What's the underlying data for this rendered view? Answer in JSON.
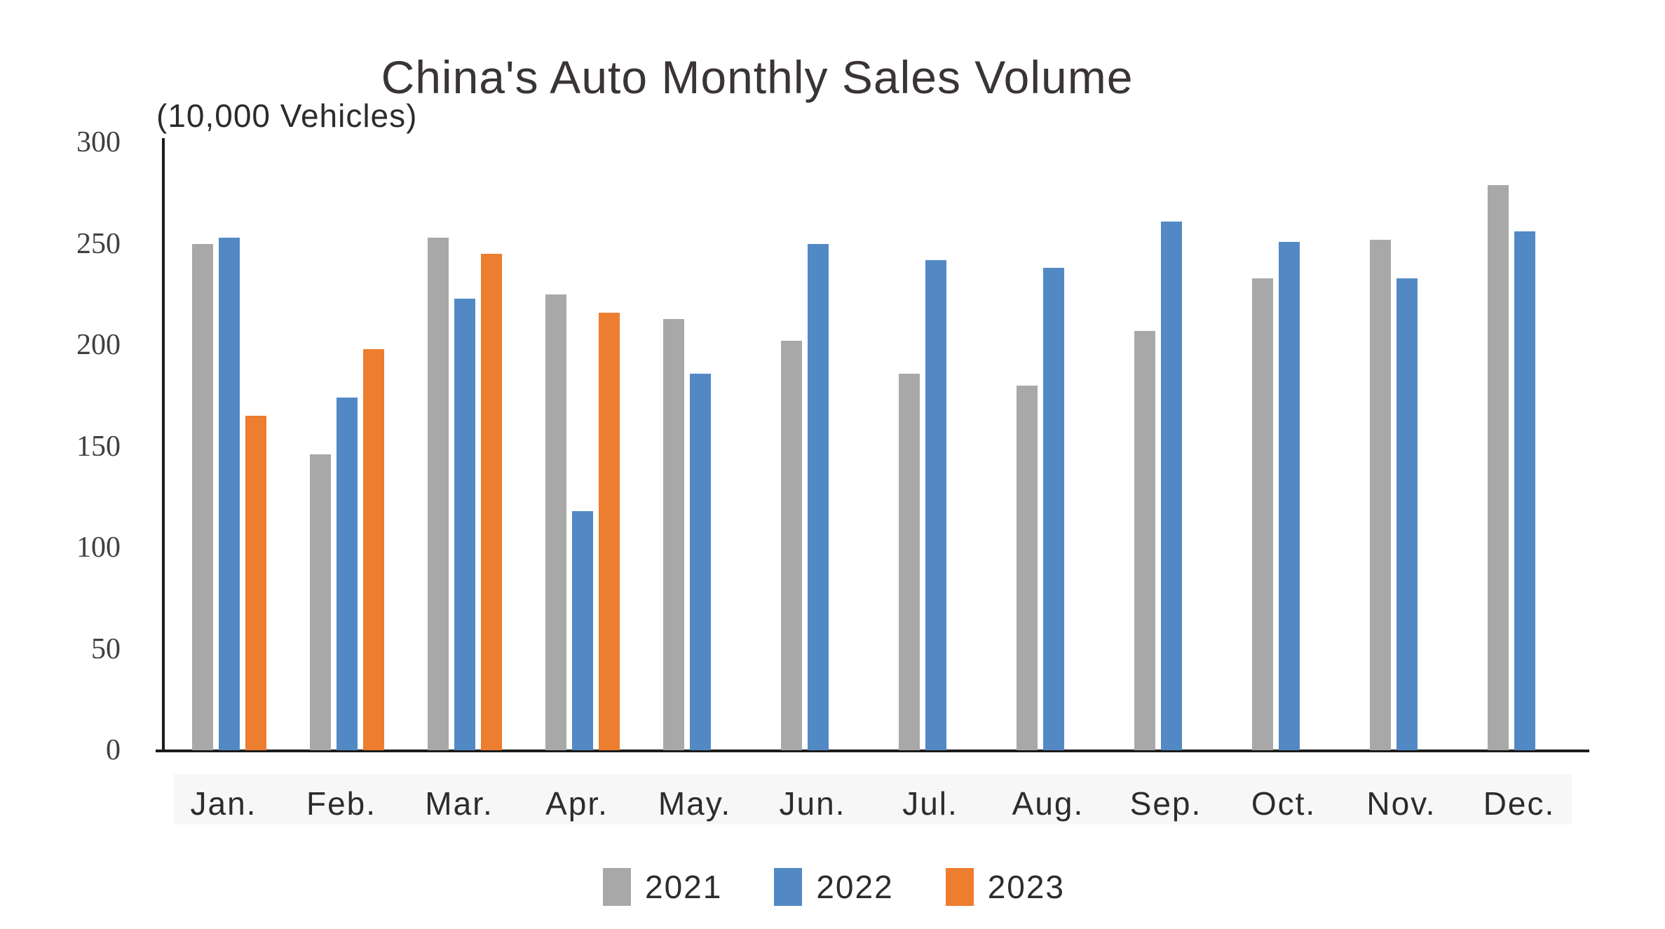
{
  "chart_data": {
    "type": "bar",
    "title": "China's Auto Monthly Sales Volume",
    "unit_label": "(10,000 Vehicles)",
    "categories": [
      "Jan.",
      "Feb.",
      "Mar.",
      "Apr.",
      "May.",
      "Jun.",
      "Jul.",
      "Aug.",
      "Sep.",
      "Oct.",
      "Nov.",
      "Dec."
    ],
    "series": [
      {
        "name": "2021",
        "color": "#a8a8a8",
        "values": [
          250,
          146,
          253,
          225,
          213,
          202,
          186,
          180,
          207,
          233,
          252,
          279
        ]
      },
      {
        "name": "2022",
        "color": "#5289c5",
        "values": [
          253,
          174,
          223,
          118,
          186,
          250,
          242,
          238,
          261,
          251,
          233,
          256
        ]
      },
      {
        "name": "2023",
        "color": "#ed7d2f",
        "values": [
          165,
          198,
          245,
          216,
          null,
          null,
          null,
          null,
          null,
          null,
          null,
          null
        ]
      }
    ],
    "xlabel": "",
    "ylabel": "",
    "ylim": [
      0,
      300
    ],
    "yticks": [
      0,
      50,
      100,
      150,
      200,
      250,
      300
    ],
    "grid": false,
    "legend_position": "bottom"
  }
}
